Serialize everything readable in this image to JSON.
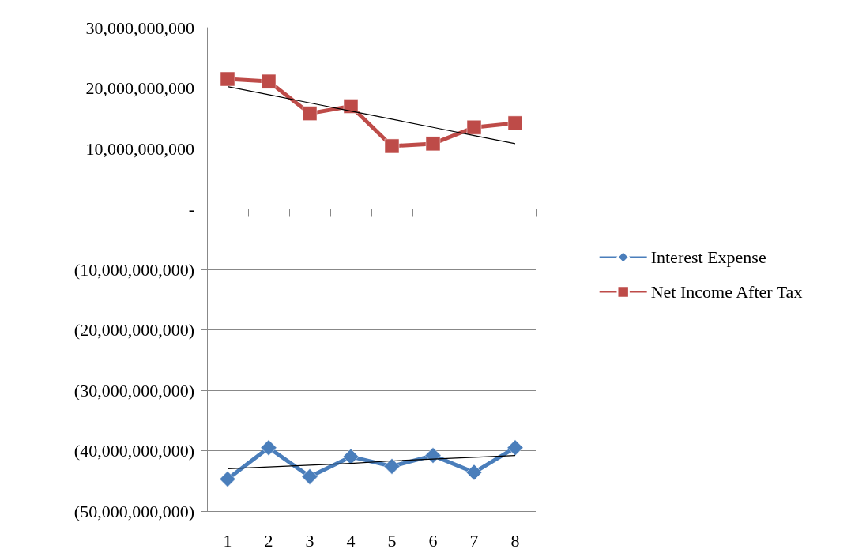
{
  "chart_data": {
    "type": "line",
    "categories": [
      "1",
      "2",
      "3",
      "4",
      "5",
      "6",
      "7",
      "8"
    ],
    "ylim": [
      -50000000000,
      30000000000
    ],
    "yticks": [
      {
        "value": -50000000000,
        "label": "(50,000,000,000)"
      },
      {
        "value": -40000000000,
        "label": "(40,000,000,000)"
      },
      {
        "value": -30000000000,
        "label": "(30,000,000,000)"
      },
      {
        "value": -20000000000,
        "label": "(20,000,000,000)"
      },
      {
        "value": -10000000000,
        "label": "(10,000,000,000)"
      },
      {
        "value": 0,
        "label": "-"
      },
      {
        "value": 10000000000,
        "label": "10,000,000,000"
      },
      {
        "value": 20000000000,
        "label": "20,000,000,000"
      },
      {
        "value": 30000000000,
        "label": "30,000,000,000"
      }
    ],
    "grid": "y",
    "legend": "right",
    "series": [
      {
        "name": "Interest Expense",
        "color": "#4a7ebb",
        "marker": "diamond",
        "values": [
          -44700000000,
          -39500000000,
          -44300000000,
          -41000000000,
          -42600000000,
          -40800000000,
          -43600000000,
          -39500000000
        ]
      },
      {
        "name": "Net Income After Tax",
        "color": "#be4b48",
        "marker": "square",
        "values": [
          21500000000,
          21100000000,
          15800000000,
          17000000000,
          10400000000,
          10800000000,
          13500000000,
          14200000000
        ]
      },
      {
        "color": "#000000",
        "marker": "none",
        "values": [
          -43000000000,
          -42700000000,
          -42400000000,
          -42100000000,
          -41700000000,
          -41400000000,
          -41100000000,
          -40800000000
        ]
      },
      {
        "color": "#000000",
        "marker": "none",
        "values": [
          20250000000,
          18900000000,
          17550000000,
          16200000000,
          14850000000,
          13500000000,
          12150000000,
          10800000000
        ]
      }
    ]
  }
}
